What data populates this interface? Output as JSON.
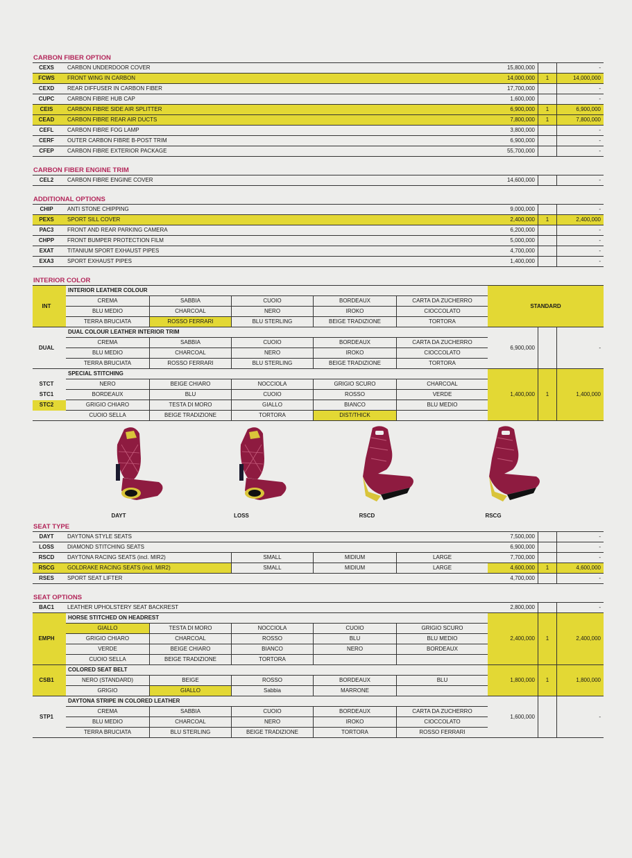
{
  "colors": {
    "highlight": "#e3d834",
    "section_title": "#b3265a",
    "seat_leather": "#8e1b40"
  },
  "sections": [
    {
      "title": "CARBON FIBER OPTION",
      "rows": [
        {
          "code": "CEXS",
          "desc": "CARBON UNDERDOOR COVER",
          "price": "15,800,000",
          "qty": "",
          "total": "-",
          "hl": false
        },
        {
          "code": "FCWS",
          "desc": "FRONT WING IN CARBON",
          "price": "14,000,000",
          "qty": "1",
          "total": "14,000,000",
          "hl": true
        },
        {
          "code": "CEXD",
          "desc": "REAR DIFFUSER IN CARBON FIBER",
          "price": "17,700,000",
          "qty": "",
          "total": "-",
          "hl": false
        },
        {
          "code": "CUPC",
          "desc": "CARBON FIBRE HUB CAP",
          "price": "1,600,000",
          "qty": "",
          "total": "-",
          "hl": false
        },
        {
          "code": "CEIS",
          "desc": "CARBON FIBRE SIDE AIR SPLITTER",
          "price": "6,900,000",
          "qty": "1",
          "total": "6,900,000",
          "hl": true
        },
        {
          "code": "CEAD",
          "desc": "CARBON FIBRE REAR AIR DUCTS",
          "price": "7,800,000",
          "qty": "1",
          "total": "7,800,000",
          "hl": true
        },
        {
          "code": "CEFL",
          "desc": "CARBON FIBRE FOG LAMP",
          "price": "3,800,000",
          "qty": "",
          "total": "-",
          "hl": false
        },
        {
          "code": "CERF",
          "desc": "OUTER  CARBON FIBRE B-POST TRIM",
          "price": "6,900,000",
          "qty": "",
          "total": "-",
          "hl": false
        },
        {
          "code": "CFEP",
          "desc": "CARBON FIBRE EXTERIOR PACKAGE",
          "price": "55,700,000",
          "qty": "",
          "total": "-",
          "hl": false
        }
      ]
    },
    {
      "title": "CARBON FIBER ENGINE TRIM",
      "rows": [
        {
          "code": "CEL2",
          "desc": "CARBON FIBRE ENGINE COVER",
          "price": "14,600,000",
          "qty": "",
          "total": "-",
          "hl": false
        }
      ]
    },
    {
      "title": "ADDITIONAL OPTIONS",
      "rows": [
        {
          "code": "CHIP",
          "desc": "ANTI STONE CHIPPING",
          "price": "9,000,000",
          "qty": "",
          "total": "-",
          "hl": false
        },
        {
          "code": "PEXS",
          "desc": "SPORT SILL COVER",
          "price": "2,400,000",
          "qty": "1",
          "total": "2,400,000",
          "hl": true
        },
        {
          "code": "PAC3",
          "desc": "FRONT AND REAR PARKING CAMERA",
          "price": "6,200,000",
          "qty": "",
          "total": "-",
          "hl": false
        },
        {
          "code": "CHPP",
          "desc": "FRONT BUMPER PROTECTION FILM",
          "price": "5,000,000",
          "qty": "",
          "total": "-",
          "hl": false
        },
        {
          "code": "EXAT",
          "desc": "TITANIUM SPORT EXHAUST PIPES",
          "price": "4,700,000",
          "qty": "",
          "total": "-",
          "hl": false
        },
        {
          "code": "EXA3",
          "desc": "SPORT EXHAUST PIPES",
          "price": "1,400,000",
          "qty": "",
          "total": "-",
          "hl": false
        }
      ]
    }
  ],
  "interior_color": {
    "title": "INTERIOR COLOR",
    "blocks": [
      {
        "code": "INT",
        "code_hl": true,
        "header": "INTERIOR LEATHER COLOUR",
        "rows": [
          [
            "CREMA",
            "SABBIA",
            "CUOIO",
            "BORDEAUX",
            "CARTA DA ZUCHERRO"
          ],
          [
            "BLU MEDIO",
            "CHARCOAL",
            "NERO",
            "IROKO",
            "CIOCCOLATO"
          ],
          [
            "TERRA BRUCIATA",
            "ROSSO FERRARI",
            "BLU STERLING",
            "BEIGE TRADIZIONE",
            "TORTORA"
          ]
        ],
        "selected": "ROSSO FERRARI",
        "price": "STANDARD",
        "hl": true
      },
      {
        "code": "DUAL",
        "code_hl": false,
        "header": "DUAL COLOUR LEATHER INTERIOR TRIM",
        "rows": [
          [
            "CREMA",
            "SABBIA",
            "CUOIO",
            "BORDEAUX",
            "CARTA DA ZUCHERRO"
          ],
          [
            "BLU MEDIO",
            "CHARCOAL",
            "NERO",
            "IROKO",
            "CIOCCOLATO"
          ],
          [
            "TERRA BRUCIATA",
            "ROSSO FERRARI",
            "BLU STERLING",
            "BEIGE TRADIZIONE",
            "TORTORA"
          ]
        ],
        "selected": "",
        "price": "6,900,000",
        "qty": "",
        "total": "-",
        "hl": false
      },
      {
        "codes": [
          "STCT",
          "STC1",
          "STC2",
          ""
        ],
        "selected_code": "STC2",
        "header": "SPECIAL STITCHING",
        "rows": [
          [
            "NERO",
            "BEIGE CHIARO",
            "NOCCIOLA",
            "GRIGIO SCURO",
            "CHARCOAL"
          ],
          [
            "BORDEAUX",
            "BLU",
            "CUOIO",
            "ROSSO",
            "VERDE"
          ],
          [
            "GRIGIO CHIARO",
            "TESTA DI MORO",
            "GIALLO",
            "BIANCO",
            "BLU MEDIO"
          ],
          [
            "CUOIO SELLA",
            "BEIGE TRADIZIONE",
            "TORTORA",
            "DIST/THICK",
            ""
          ]
        ],
        "selected": "DIST/THICK",
        "price": "1,400,000",
        "qty": "1",
        "total": "1,400,000",
        "hl": true
      }
    ]
  },
  "seat_images": {
    "labels": [
      "DAYT",
      "LOSS",
      "RSCD",
      "RSCG"
    ]
  },
  "seat_type": {
    "title": "SEAT TYPE",
    "rows": [
      {
        "code": "DAYT",
        "desc": "DAYTONA STYLE SEATS",
        "price": "7,500,000",
        "qty": "",
        "total": "-",
        "hl": false
      },
      {
        "code": "LOSS",
        "desc": "DIAMOND STITCHING SEATS",
        "price": "6,900,000",
        "qty": "",
        "total": "-",
        "hl": false
      },
      {
        "code": "RSCD",
        "desc": "DAYTONA RACING SEATS (incl. MIR2)",
        "sizes": [
          "SMALL",
          "MIDIUM",
          "LARGE"
        ],
        "price": "7,700,000",
        "qty": "",
        "total": "-",
        "hl": false
      },
      {
        "code": "RSCG",
        "desc": "GOLDRAKE RACING SEATS (incl. MIR2)",
        "sizes": [
          "SMALL",
          "MIDIUM",
          "LARGE"
        ],
        "price": "4,600,000",
        "qty": "1",
        "total": "4,600,000",
        "hl": true
      },
      {
        "code": "RSES",
        "desc": "SPORT SEAT LIFTER",
        "price": "4,700,000",
        "qty": "",
        "total": "-",
        "hl": false
      }
    ]
  },
  "seat_options": {
    "title": "SEAT OPTIONS",
    "rows": [
      {
        "code": "BAC1",
        "desc": "LEATHER UPHOLSTERY SEAT BACKREST",
        "price": "2,800,000",
        "qty": "",
        "total": "-",
        "hl": false
      }
    ],
    "blocks": [
      {
        "code": "EMPH",
        "code_hl": true,
        "header": "HORSE STITCHED ON HEADREST",
        "rows": [
          [
            "GIALLO",
            "TESTA DI MORO",
            "NOCCIOLA",
            "CUOIO",
            "GRIGIO SCURO"
          ],
          [
            "GRIGIO CHIARO",
            "CHARCOAL",
            "ROSSO",
            "BLU",
            "BLU MEDIO"
          ],
          [
            "VERDE",
            "BEIGE CHIARO",
            "BIANCO",
            "NERO",
            "BORDEAUX"
          ],
          [
            "CUOIO SELLA",
            "BEIGE TRADIZIONE",
            "TORTORA",
            "",
            ""
          ]
        ],
        "selected": "GIALLO",
        "price": "2,400,000",
        "qty": "1",
        "total": "2,400,000",
        "hl": true
      },
      {
        "code": "CSB1",
        "code_hl": true,
        "header": "COLORED SEAT BELT",
        "rows": [
          [
            "NERO (STANDARD)",
            "BEIGE",
            "ROSSO",
            "BORDEAUX",
            "BLU"
          ],
          [
            "GRIGIO",
            "GIALLO",
            "Sabbia",
            "MARRONE",
            ""
          ]
        ],
        "selected": "GIALLO",
        "price": "1,800,000",
        "qty": "1",
        "total": "1,800,000",
        "hl": true
      },
      {
        "code": "STP1",
        "code_hl": false,
        "header": "DAYTONA STRIPE IN COLORED LEATHER",
        "rows": [
          [
            "CREMA",
            "SABBIA",
            "CUOIO",
            "BORDEAUX",
            "CARTA DA ZUCHERRO"
          ],
          [
            "BLU MEDIO",
            "CHARCOAL",
            "NERO",
            "IROKO",
            "CIOCCOLATO"
          ],
          [
            "TERRA BRUCIATA",
            "BLU STERLING",
            "BEIGE TRADIZIONE",
            "TORTORA",
            "ROSSO FERRARI"
          ]
        ],
        "selected": "",
        "price": "1,600,000",
        "qty": "",
        "total": "-",
        "hl": false
      }
    ]
  }
}
